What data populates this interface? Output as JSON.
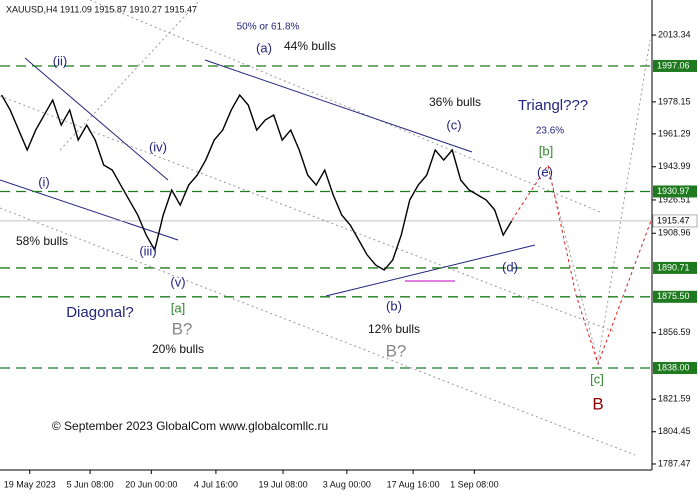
{
  "chart_data": {
    "type": "line",
    "title": "XAUUSD,H4  1911.09 1915.87 1910.27 1915.47",
    "footer": "© September 2023 GlobalCom www.globalcomllc.ru",
    "series": [
      {
        "name": "XAUUSD",
        "color": "#000000",
        "x": [
          0,
          1,
          2,
          3,
          4,
          5,
          6,
          7,
          8,
          9,
          10,
          11,
          12,
          13,
          14,
          15,
          16,
          17,
          18,
          19,
          20,
          21,
          22,
          23,
          24,
          25,
          26,
          27,
          28,
          29,
          30,
          31,
          32,
          33,
          34,
          35,
          36,
          37,
          38,
          39,
          40,
          41,
          42,
          43,
          44,
          45,
          46,
          47,
          48,
          49,
          50,
          51,
          52,
          53,
          54,
          55,
          56,
          57,
          58,
          59,
          60
        ],
        "values": [
          1981.75,
          1973.85,
          1963.32,
          1952.8,
          1963.32,
          1971.2,
          1979.1,
          1965.95,
          1973.85,
          1958.05,
          1965.95,
          1958.05,
          1944.9,
          1942.25,
          1934.35,
          1926.45,
          1918.6,
          1908.0,
          1900.1,
          1918.6,
          1931.7,
          1923.8,
          1934.35,
          1939.6,
          1947.5,
          1958.05,
          1963.32,
          1973.85,
          1981.75,
          1976.5,
          1963.32,
          1968.6,
          1971.2,
          1958.05,
          1963.32,
          1952.8,
          1939.6,
          1934.35,
          1942.25,
          1929.1,
          1918.6,
          1913.3,
          1905.4,
          1897.5,
          1892.2,
          1889.6,
          1894.9,
          1908.0,
          1926.45,
          1934.35,
          1939.6,
          1952.8,
          1947.5,
          1952.8,
          1936.95,
          1931.7,
          1929.1,
          1926.45,
          1921.2,
          1908.0,
          1915.47
        ]
      }
    ],
    "xlim": [
      -0.2,
      76.5
    ],
    "xticks": [
      {
        "value": 3.3,
        "label": "19 May 2023"
      },
      {
        "value": 10.4,
        "label": "5 Jun 08:00"
      },
      {
        "value": 17.6,
        "label": "20 Jun 00:00"
      },
      {
        "value": 25.2,
        "label": "4 Jul 16:00"
      },
      {
        "value": 33.1,
        "label": "19 Jul 08:00"
      },
      {
        "value": 40.6,
        "label": "3 Aug 00:00"
      },
      {
        "value": 48.4,
        "label": "17 Aug 16:00"
      },
      {
        "value": 55.6,
        "label": "1 Sep 08:00"
      }
    ],
    "ylim": [
      1784.3,
      2031.8
    ],
    "yticks": [
      2013.34,
      1978.15,
      1961.29,
      1943.99,
      1926.51,
      1908.96,
      1856.59,
      1821.59,
      1804.45,
      1787.47
    ],
    "levels": [
      1997.06,
      1930.97,
      1890.71,
      {
        "value": 1875.5,
        "label": "1875.50"
      },
      {
        "value": 1838,
        "label": "1838.00"
      }
    ],
    "level_color": "#1f7a1f",
    "price_line": 1915.47,
    "price_line_color": "#b0b0b0",
    "annotations": [
      {
        "text": "(ii)",
        "color": "#23237e"
      },
      {
        "text": "(iv)",
        "color": "#23237e"
      },
      {
        "text": "(i)",
        "color": "#23237e"
      },
      {
        "text": "58% bulls",
        "color": "#111111"
      },
      {
        "text": "(iii)",
        "color": "#23237e"
      },
      {
        "text": "(v)",
        "color": "#23237e"
      },
      {
        "text": "[a]",
        "color": "#2e8b2e"
      },
      {
        "text": "B?",
        "color": "#888888"
      },
      {
        "text": "20% bulls",
        "color": "#111111"
      },
      {
        "text": "Diagonal?",
        "color": "#23237e"
      },
      {
        "text": "50% or 61.8%",
        "color": "#23237e"
      },
      {
        "text": "(a)",
        "color": "#23237e"
      },
      {
        "text": "44% bulls",
        "color": "#111111"
      },
      {
        "text": "36% bulls",
        "color": "#111111"
      },
      {
        "text": "(c)",
        "color": "#23237e"
      },
      {
        "text": "Triangl???",
        "color": "#23237e"
      },
      {
        "text": "23.6%",
        "color": "#23237e"
      },
      {
        "text": "[b]",
        "color": "#2e8b2e"
      },
      {
        "text": "(e)",
        "color": "#23237e"
      },
      {
        "text": "(d)",
        "color": "#23237e"
      },
      {
        "text": "(b)",
        "color": "#23237e"
      },
      {
        "text": "12% bulls",
        "color": "#111111"
      },
      {
        "text": "B?",
        "color": "#888888"
      },
      {
        "text": "[c]",
        "color": "#2e8b2e"
      },
      {
        "text": "B",
        "color": "#8b0000"
      }
    ]
  }
}
